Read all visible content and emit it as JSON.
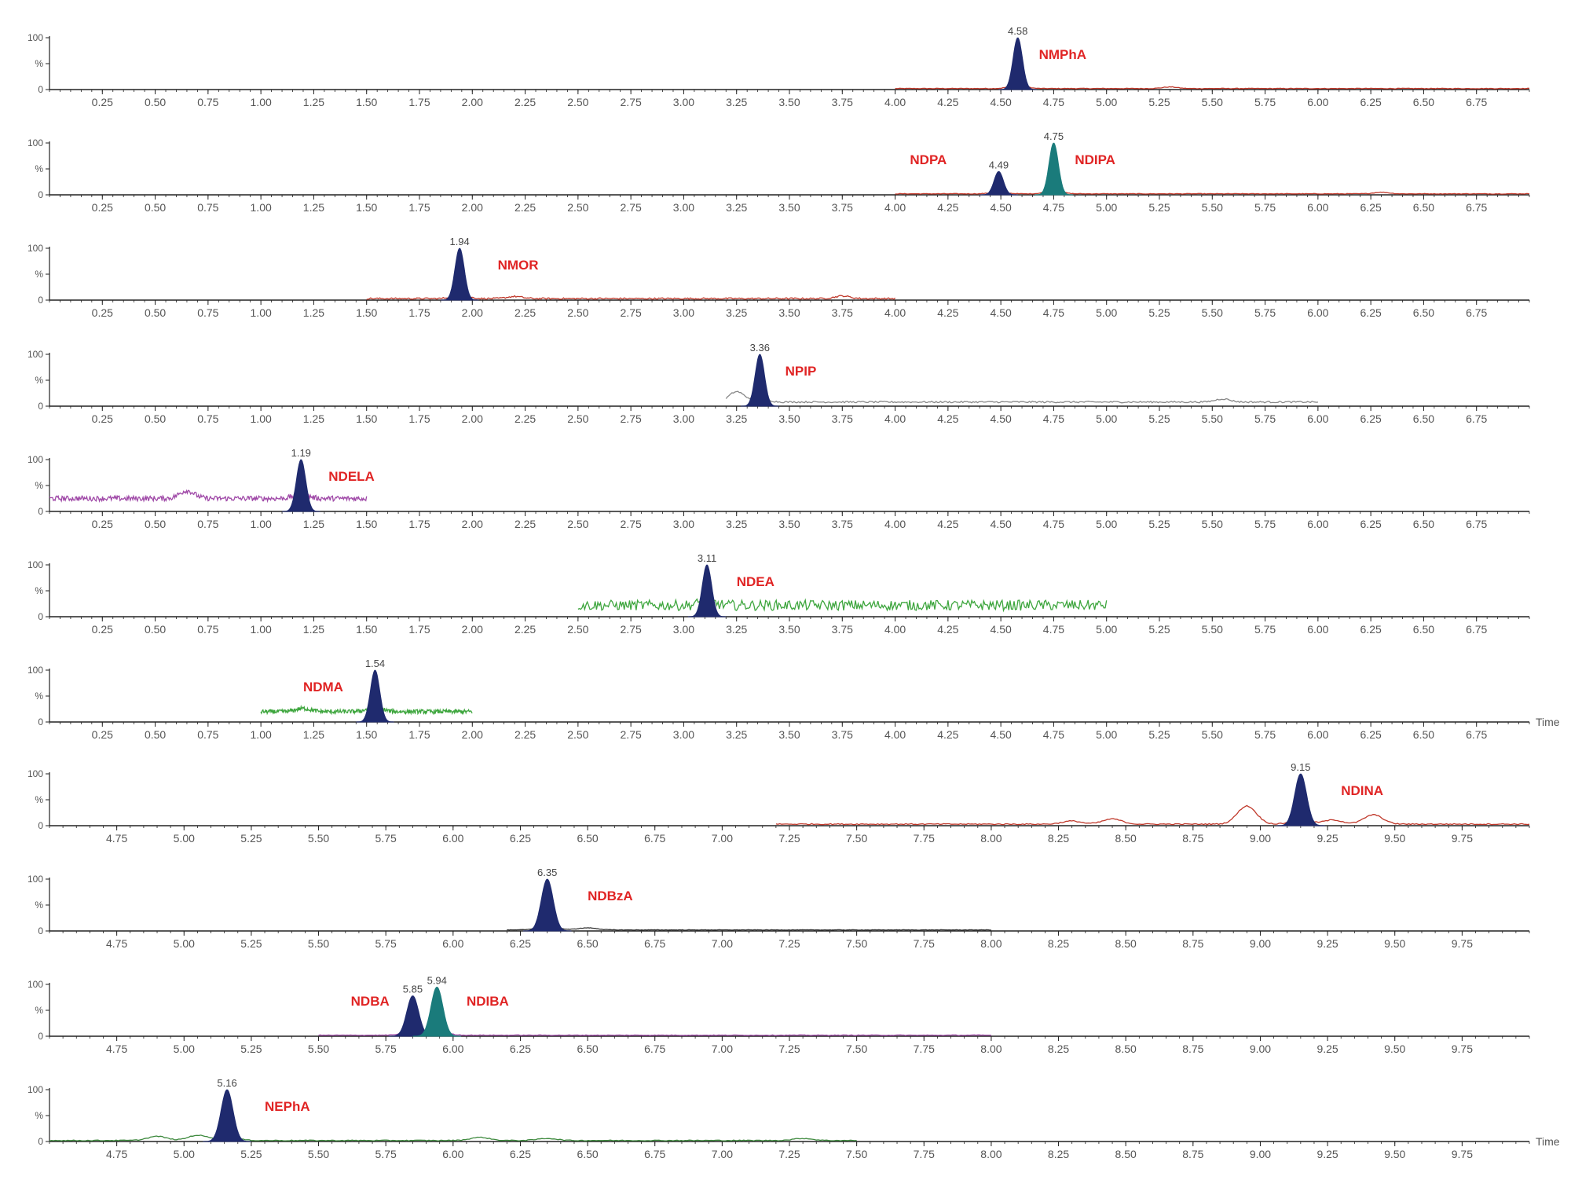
{
  "chart_data": {
    "type": "line",
    "x_unit_label": "Time",
    "y_ticks": [
      "100",
      "%",
      "0"
    ],
    "panels": [
      {
        "compounds": [
          {
            "name": "NMPhA",
            "rt": 4.58,
            "rt_label": "4.58",
            "label_x": 4.68,
            "fill": "#1f2a6e"
          }
        ],
        "xlim": [
          0,
          7.0
        ],
        "xticks": [
          "0.25",
          "0.50",
          "0.75",
          "1.00",
          "1.25",
          "1.50",
          "1.75",
          "2.00",
          "2.25",
          "2.50",
          "2.75",
          "3.00",
          "3.25",
          "3.50",
          "3.75",
          "4.00",
          "4.25",
          "4.50",
          "4.75",
          "5.00",
          "5.25",
          "5.50",
          "5.75",
          "6.00",
          "6.25",
          "6.50",
          "6.75"
        ],
        "trace_range": [
          4.0,
          7.0
        ],
        "trace_color": "#c0392b",
        "baseline": 2,
        "noise": 0.6,
        "bumps": [
          [
            5.3,
            3
          ]
        ],
        "show_time": false
      },
      {
        "compounds": [
          {
            "name": "NDPA",
            "rt": 4.49,
            "rt_label": "4.49",
            "label_x": 4.07,
            "fill": "#1f2a6e",
            "height": 45
          },
          {
            "name": "NDIPA",
            "rt": 4.75,
            "rt_label": "4.75",
            "label_x": 4.85,
            "fill": "#1a7b7b",
            "height": 100
          }
        ],
        "xlim": [
          0,
          7.0
        ],
        "xticks": [
          "0.25",
          "0.50",
          "0.75",
          "1.00",
          "1.25",
          "1.50",
          "1.75",
          "2.00",
          "2.25",
          "2.50",
          "2.75",
          "3.00",
          "3.25",
          "3.50",
          "3.75",
          "4.00",
          "4.25",
          "4.50",
          "4.75",
          "5.00",
          "5.25",
          "5.50",
          "5.75",
          "6.00",
          "6.25",
          "6.50",
          "6.75"
        ],
        "trace_range": [
          4.0,
          7.0
        ],
        "trace_color": "#c0392b",
        "baseline": 2,
        "noise": 0.6,
        "bumps": [
          [
            6.3,
            3
          ]
        ],
        "show_time": false
      },
      {
        "compounds": [
          {
            "name": "NMOR",
            "rt": 1.94,
            "rt_label": "1.94",
            "label_x": 2.12,
            "fill": "#1f2a6e"
          }
        ],
        "xlim": [
          0,
          7.0
        ],
        "xticks": [
          "0.25",
          "0.50",
          "0.75",
          "1.00",
          "1.25",
          "1.50",
          "1.75",
          "2.00",
          "2.25",
          "2.50",
          "2.75",
          "3.00",
          "3.25",
          "3.50",
          "3.75",
          "4.00",
          "4.25",
          "4.50",
          "4.75",
          "5.00",
          "5.25",
          "5.50",
          "5.75",
          "6.00",
          "6.25",
          "6.50",
          "6.75"
        ],
        "trace_range": [
          1.5,
          4.0
        ],
        "trace_color": "#c0392b",
        "baseline": 3,
        "noise": 1.5,
        "bumps": [
          [
            2.2,
            4
          ],
          [
            3.75,
            5
          ]
        ],
        "show_time": false
      },
      {
        "compounds": [
          {
            "name": "NPIP",
            "rt": 3.36,
            "rt_label": "3.36",
            "label_x": 3.48,
            "fill": "#1f2a6e"
          }
        ],
        "xlim": [
          0,
          7.0
        ],
        "xticks": [
          "0.25",
          "0.50",
          "0.75",
          "1.00",
          "1.25",
          "1.50",
          "1.75",
          "2.00",
          "2.25",
          "2.50",
          "2.75",
          "3.00",
          "3.25",
          "3.50",
          "3.75",
          "4.00",
          "4.25",
          "4.50",
          "4.75",
          "5.00",
          "5.25",
          "5.50",
          "5.75",
          "6.00",
          "6.25",
          "6.50",
          "6.75"
        ],
        "trace_range": [
          3.2,
          6.0
        ],
        "trace_color": "#888888",
        "baseline": 8,
        "noise": 1.5,
        "bumps": [
          [
            3.25,
            20
          ],
          [
            5.55,
            6
          ]
        ],
        "show_time": false
      },
      {
        "compounds": [
          {
            "name": "NDELA",
            "rt": 1.19,
            "rt_label": "1.19",
            "label_x": 1.32,
            "fill": "#1f2a6e"
          }
        ],
        "xlim": [
          0,
          7.0
        ],
        "xticks": [
          "0.25",
          "0.50",
          "0.75",
          "1.00",
          "1.25",
          "1.50",
          "1.75",
          "2.00",
          "2.25",
          "2.50",
          "2.75",
          "3.00",
          "3.25",
          "3.50",
          "3.75",
          "4.00",
          "4.25",
          "4.50",
          "4.75",
          "5.00",
          "5.25",
          "5.50",
          "5.75",
          "6.00",
          "6.25",
          "6.50",
          "6.75"
        ],
        "trace_range": [
          0.0,
          1.5
        ],
        "trace_color": "#a04aa8",
        "baseline": 25,
        "noise": 5,
        "bumps": [
          [
            0.65,
            15
          ]
        ],
        "show_time": false
      },
      {
        "compounds": [
          {
            "name": "NDEA",
            "rt": 3.11,
            "rt_label": "3.11",
            "label_x": 3.25,
            "fill": "#1f2a6e"
          }
        ],
        "xlim": [
          0,
          7.0
        ],
        "xticks": [
          "0.25",
          "0.50",
          "0.75",
          "1.00",
          "1.25",
          "1.50",
          "1.75",
          "2.00",
          "2.25",
          "2.50",
          "2.75",
          "3.00",
          "3.25",
          "3.50",
          "3.75",
          "4.00",
          "4.25",
          "4.50",
          "4.75",
          "5.00",
          "5.25",
          "5.50",
          "5.75",
          "6.00",
          "6.25",
          "6.50",
          "6.75"
        ],
        "trace_range": [
          2.5,
          5.0
        ],
        "trace_color": "#3ea63e",
        "baseline": 22,
        "noise": 10,
        "bumps": [],
        "show_time": false
      },
      {
        "compounds": [
          {
            "name": "NDMA",
            "rt": 1.54,
            "rt_label": "1.54",
            "label_x": 1.2,
            "fill": "#1f2a6e"
          }
        ],
        "xlim": [
          0,
          7.0
        ],
        "xticks": [
          "0.25",
          "0.50",
          "0.75",
          "1.00",
          "1.25",
          "1.50",
          "1.75",
          "2.00",
          "2.25",
          "2.50",
          "2.75",
          "3.00",
          "3.25",
          "3.50",
          "3.75",
          "4.00",
          "4.25",
          "4.50",
          "4.75",
          "5.00",
          "5.25",
          "5.50",
          "5.75",
          "6.00",
          "6.25",
          "6.50",
          "6.75"
        ],
        "trace_range": [
          1.0,
          2.0
        ],
        "trace_color": "#3ea63e",
        "baseline": 20,
        "noise": 4,
        "bumps": [
          [
            1.2,
            6
          ]
        ],
        "show_time": true
      },
      {
        "compounds": [
          {
            "name": "NDINA",
            "rt": 9.15,
            "rt_label": "9.15",
            "label_x": 9.3,
            "fill": "#1f2a6e"
          }
        ],
        "xlim": [
          4.5,
          10.0
        ],
        "xticks": [
          "4.75",
          "5.00",
          "5.25",
          "5.50",
          "5.75",
          "6.00",
          "6.25",
          "6.50",
          "6.75",
          "7.00",
          "7.25",
          "7.50",
          "7.75",
          "8.00",
          "8.25",
          "8.50",
          "8.75",
          "9.00",
          "9.25",
          "9.50",
          "9.75"
        ],
        "trace_range": [
          7.2,
          10.0
        ],
        "trace_color": "#c0392b",
        "baseline": 3,
        "noise": 1,
        "bumps": [
          [
            8.95,
            35
          ],
          [
            9.42,
            18
          ],
          [
            8.45,
            10
          ],
          [
            8.3,
            6
          ],
          [
            9.27,
            8
          ]
        ],
        "show_time": false
      },
      {
        "compounds": [
          {
            "name": "NDBzA",
            "rt": 6.35,
            "rt_label": "6.35",
            "label_x": 6.5,
            "fill": "#1f2a6e"
          }
        ],
        "xlim": [
          4.5,
          10.0
        ],
        "xticks": [
          "4.75",
          "5.00",
          "5.25",
          "5.50",
          "5.75",
          "6.00",
          "6.25",
          "6.50",
          "6.75",
          "7.00",
          "7.25",
          "7.50",
          "7.75",
          "8.00",
          "8.25",
          "8.50",
          "8.75",
          "9.00",
          "9.25",
          "9.50",
          "9.75"
        ],
        "trace_range": [
          6.2,
          8.0
        ],
        "trace_color": "#333333",
        "baseline": 2,
        "noise": 0.5,
        "bumps": [
          [
            6.5,
            4
          ]
        ],
        "show_time": false
      },
      {
        "compounds": [
          {
            "name": "NDBA",
            "rt": 5.85,
            "rt_label": "5.85",
            "label_x": 5.62,
            "fill": "#1f2a6e",
            "height": 78
          },
          {
            "name": "NDIBA",
            "rt": 5.94,
            "rt_label": "5.94",
            "label_x": 6.05,
            "fill": "#1a7b7b",
            "height": 95
          }
        ],
        "xlim": [
          4.5,
          10.0
        ],
        "xticks": [
          "4.75",
          "5.00",
          "5.25",
          "5.50",
          "5.75",
          "6.00",
          "6.25",
          "6.50",
          "6.75",
          "7.00",
          "7.25",
          "7.50",
          "7.75",
          "8.00",
          "8.25",
          "8.50",
          "8.75",
          "9.00",
          "9.25",
          "9.50",
          "9.75"
        ],
        "trace_range": [
          5.5,
          8.0
        ],
        "trace_color": "#a04aa8",
        "baseline": 2,
        "noise": 0.6,
        "bumps": [],
        "show_time": false
      },
      {
        "compounds": [
          {
            "name": "NEPhA",
            "rt": 5.16,
            "rt_label": "5.16",
            "label_x": 5.3,
            "fill": "#1f2a6e"
          }
        ],
        "xlim": [
          4.5,
          10.0
        ],
        "xticks": [
          "4.75",
          "5.00",
          "5.25",
          "5.50",
          "5.75",
          "6.00",
          "6.25",
          "6.50",
          "6.75",
          "7.00",
          "7.25",
          "7.50",
          "7.75",
          "8.00",
          "8.25",
          "8.50",
          "8.75",
          "9.00",
          "9.25",
          "9.50",
          "9.75"
        ],
        "trace_range": [
          4.5,
          7.5
        ],
        "trace_color": "#3e8a3e",
        "baseline": 2,
        "noise": 0.8,
        "bumps": [
          [
            4.9,
            8
          ],
          [
            5.05,
            10
          ],
          [
            6.1,
            6
          ],
          [
            6.35,
            4
          ],
          [
            7.3,
            4
          ]
        ],
        "show_time": true
      }
    ]
  },
  "colors": {
    "axis": "#222222",
    "compound_label": "#e02424",
    "tick": "#555555"
  }
}
